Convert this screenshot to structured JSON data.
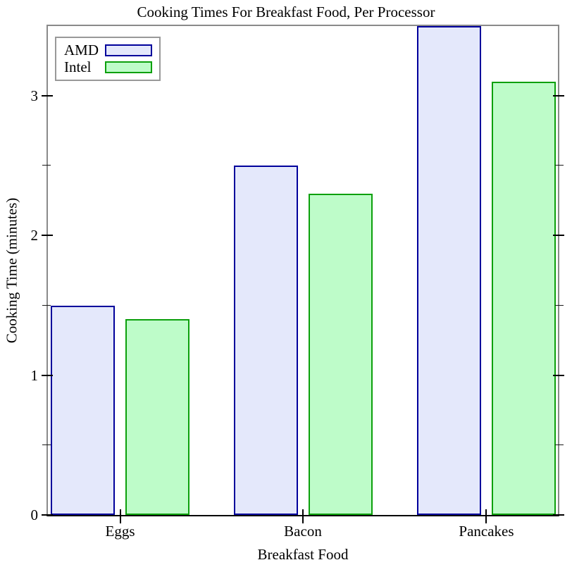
{
  "chart_data": {
    "type": "bar",
    "title": "Cooking Times For Breakfast Food, Per Processor",
    "xlabel": "Breakfast Food",
    "ylabel": "Cooking Time (minutes)",
    "categories": [
      "Eggs",
      "Bacon",
      "Pancakes"
    ],
    "series": [
      {
        "name": "AMD",
        "values": [
          1.5,
          2.5,
          3.5
        ],
        "fill_color": "#E4E8FB",
        "edge_color": "#00009B"
      },
      {
        "name": "Intel",
        "values": [
          1.4,
          2.3,
          3.1
        ],
        "fill_color": "#BEFCC9",
        "edge_color": "#0CA00C"
      }
    ],
    "ylim": [
      0,
      3.5
    ],
    "y_major_ticks": [
      "0",
      "1",
      "2",
      "3"
    ],
    "y_minor_ticks": [
      0.5,
      1.5,
      2.5
    ],
    "grid": false,
    "legend_position": "top-left",
    "frame_color": "#8A8A8A",
    "axis_color": "#000000"
  }
}
